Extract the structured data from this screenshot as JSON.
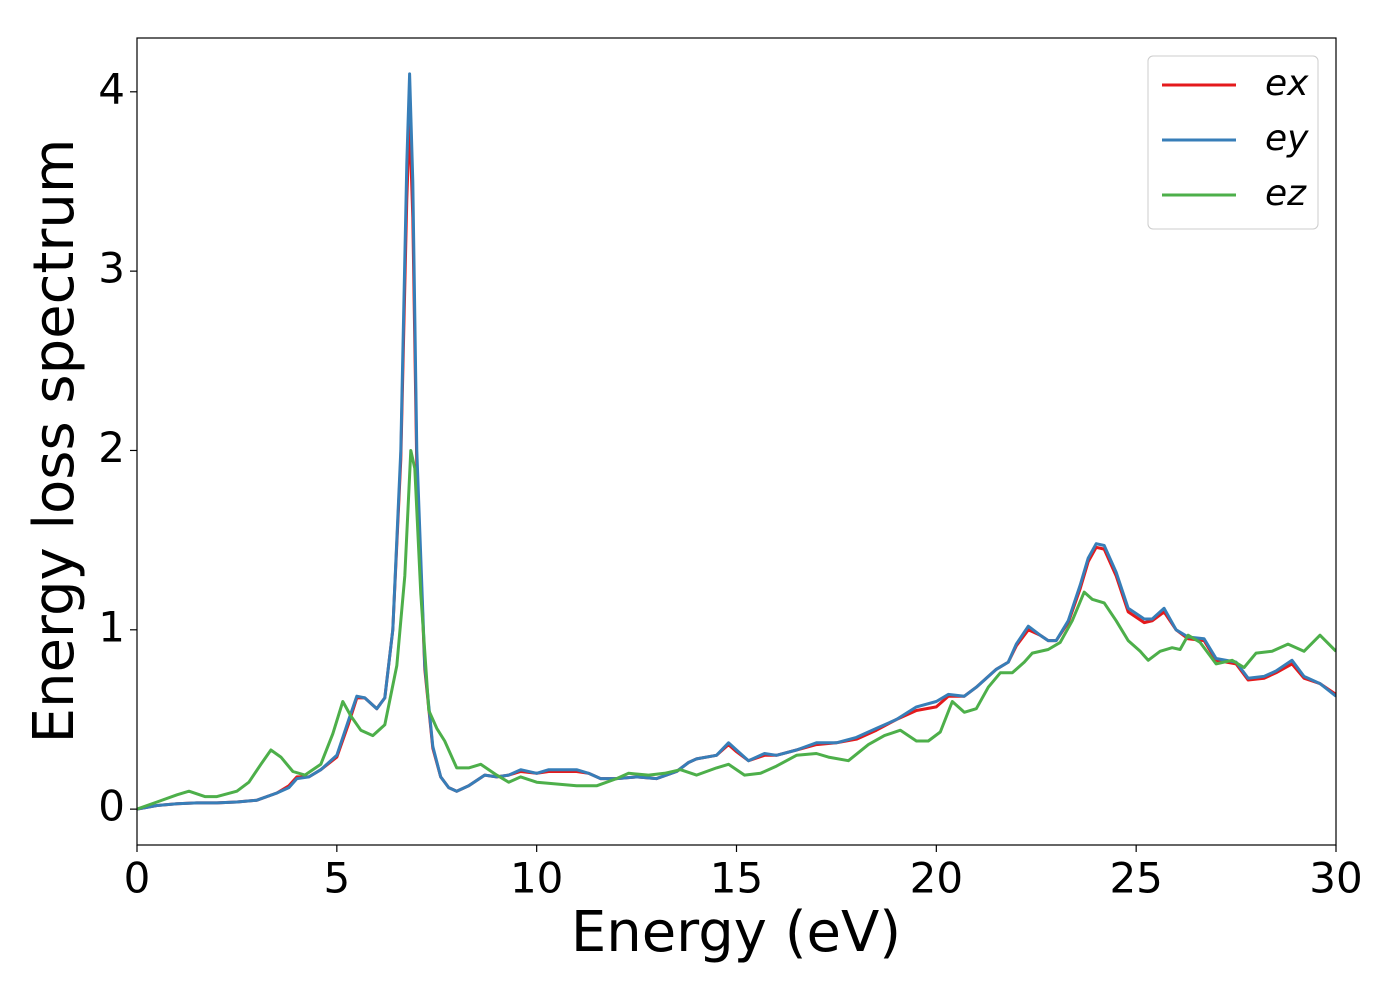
{
  "chart_data": {
    "type": "line",
    "xlabel": "Energy (eV)",
    "ylabel": "Energy loss spectrum",
    "xlim": [
      0,
      30
    ],
    "ylim": [
      -0.2,
      4.3
    ],
    "xticks": [
      0,
      5,
      10,
      15,
      20,
      25,
      30
    ],
    "yticks": [
      0,
      1,
      2,
      3,
      4
    ],
    "grid": false,
    "legend": "upper right",
    "series": [
      {
        "name": "ex",
        "color": "#e41a1c",
        "x": [
          0,
          0.5,
          1,
          1.5,
          2,
          2.5,
          3,
          3.5,
          3.8,
          4,
          4.3,
          4.6,
          5,
          5.3,
          5.5,
          5.7,
          6,
          6.2,
          6.4,
          6.6,
          6.75,
          6.82,
          6.9,
          7.0,
          7.2,
          7.4,
          7.6,
          7.8,
          8.0,
          8.3,
          8.7,
          9,
          9.3,
          9.6,
          10,
          10.3,
          11,
          11.3,
          11.6,
          12,
          12.5,
          13,
          13.5,
          13.8,
          14,
          14.5,
          14.8,
          15,
          15.3,
          15.7,
          16,
          16.5,
          17,
          17.5,
          18,
          18.5,
          19,
          19.5,
          20,
          20.3,
          20.7,
          21,
          21.5,
          21.8,
          22,
          22.3,
          22.6,
          22.8,
          23.0,
          23.3,
          23.6,
          23.8,
          24.0,
          24.2,
          24.5,
          24.8,
          25.2,
          25.4,
          25.7,
          26,
          26.3,
          26.7,
          27,
          27.5,
          27.8,
          28.2,
          28.5,
          28.9,
          29.2,
          29.6,
          30
        ],
        "values": [
          0,
          0.02,
          0.03,
          0.035,
          0.035,
          0.04,
          0.05,
          0.09,
          0.13,
          0.18,
          0.18,
          0.22,
          0.29,
          0.48,
          0.62,
          0.62,
          0.56,
          0.62,
          1.0,
          1.95,
          3.4,
          3.85,
          3.3,
          1.9,
          0.78,
          0.34,
          0.18,
          0.12,
          0.1,
          0.13,
          0.19,
          0.18,
          0.19,
          0.21,
          0.2,
          0.21,
          0.21,
          0.2,
          0.17,
          0.17,
          0.18,
          0.17,
          0.21,
          0.26,
          0.28,
          0.3,
          0.36,
          0.32,
          0.27,
          0.3,
          0.3,
          0.33,
          0.36,
          0.37,
          0.39,
          0.44,
          0.5,
          0.55,
          0.57,
          0.63,
          0.63,
          0.68,
          0.78,
          0.82,
          0.91,
          1.0,
          0.97,
          0.94,
          0.94,
          1.04,
          1.23,
          1.38,
          1.46,
          1.45,
          1.3,
          1.1,
          1.04,
          1.05,
          1.1,
          1.0,
          0.95,
          0.94,
          0.83,
          0.81,
          0.72,
          0.73,
          0.76,
          0.81,
          0.73,
          0.7,
          0.64
        ]
      },
      {
        "name": "ey",
        "color": "#377eb8",
        "x": [
          0,
          0.5,
          1,
          1.5,
          2,
          2.5,
          3,
          3.5,
          3.8,
          4,
          4.3,
          4.6,
          5,
          5.3,
          5.5,
          5.7,
          6,
          6.2,
          6.4,
          6.6,
          6.75,
          6.82,
          6.9,
          7.0,
          7.2,
          7.4,
          7.6,
          7.8,
          8.0,
          8.3,
          8.7,
          9,
          9.3,
          9.6,
          10,
          10.3,
          11,
          11.3,
          11.6,
          12,
          12.5,
          13,
          13.5,
          13.8,
          14,
          14.5,
          14.8,
          15,
          15.3,
          15.7,
          16,
          16.5,
          17,
          17.5,
          18,
          18.5,
          19,
          19.5,
          20,
          20.3,
          20.7,
          21,
          21.5,
          21.8,
          22,
          22.3,
          22.6,
          22.8,
          23.0,
          23.3,
          23.6,
          23.8,
          24.0,
          24.2,
          24.5,
          24.8,
          25.2,
          25.4,
          25.7,
          26,
          26.3,
          26.7,
          27,
          27.5,
          27.8,
          28.2,
          28.5,
          28.9,
          29.2,
          29.6,
          30
        ],
        "values": [
          0,
          0.02,
          0.03,
          0.035,
          0.035,
          0.04,
          0.05,
          0.09,
          0.12,
          0.17,
          0.18,
          0.22,
          0.3,
          0.5,
          0.63,
          0.62,
          0.56,
          0.62,
          1.0,
          2.0,
          3.6,
          4.1,
          3.5,
          2.0,
          0.8,
          0.35,
          0.18,
          0.12,
          0.1,
          0.13,
          0.19,
          0.18,
          0.19,
          0.22,
          0.2,
          0.22,
          0.22,
          0.2,
          0.17,
          0.17,
          0.18,
          0.17,
          0.21,
          0.26,
          0.28,
          0.3,
          0.37,
          0.33,
          0.27,
          0.31,
          0.3,
          0.33,
          0.37,
          0.37,
          0.4,
          0.45,
          0.5,
          0.57,
          0.6,
          0.64,
          0.63,
          0.68,
          0.78,
          0.82,
          0.92,
          1.02,
          0.97,
          0.94,
          0.94,
          1.05,
          1.25,
          1.4,
          1.48,
          1.47,
          1.32,
          1.12,
          1.06,
          1.06,
          1.12,
          1.0,
          0.96,
          0.95,
          0.84,
          0.82,
          0.73,
          0.74,
          0.77,
          0.83,
          0.74,
          0.7,
          0.63
        ]
      },
      {
        "name": "ez",
        "color": "#4daf4a",
        "x": [
          0,
          0.5,
          1,
          1.3,
          1.7,
          2,
          2.5,
          2.8,
          3.1,
          3.35,
          3.6,
          3.9,
          4.2,
          4.6,
          4.9,
          5.15,
          5.35,
          5.6,
          5.9,
          6.2,
          6.5,
          6.7,
          6.85,
          6.95,
          7.1,
          7.3,
          7.5,
          7.7,
          8,
          8.3,
          8.6,
          9,
          9.3,
          9.6,
          10,
          10.5,
          11,
          11.5,
          12,
          12.3,
          12.8,
          13.2,
          13.6,
          14,
          14.5,
          14.8,
          15.2,
          15.6,
          16,
          16.5,
          17,
          17.3,
          17.8,
          18.3,
          18.7,
          19.1,
          19.5,
          19.8,
          20.1,
          20.4,
          20.7,
          21,
          21.3,
          21.6,
          21.9,
          22.2,
          22.4,
          22.8,
          23.1,
          23.4,
          23.7,
          23.9,
          24.2,
          24.5,
          24.8,
          25.1,
          25.3,
          25.6,
          25.9,
          26.1,
          26.3,
          26.6,
          27,
          27.4,
          27.7,
          28,
          28.4,
          28.8,
          29.2,
          29.6,
          30
        ],
        "values": [
          0,
          0.04,
          0.08,
          0.1,
          0.07,
          0.07,
          0.1,
          0.15,
          0.25,
          0.33,
          0.29,
          0.21,
          0.19,
          0.25,
          0.42,
          0.6,
          0.52,
          0.44,
          0.41,
          0.47,
          0.8,
          1.3,
          2.0,
          1.9,
          1.2,
          0.55,
          0.45,
          0.38,
          0.23,
          0.23,
          0.25,
          0.19,
          0.15,
          0.18,
          0.15,
          0.14,
          0.13,
          0.13,
          0.17,
          0.2,
          0.19,
          0.2,
          0.22,
          0.19,
          0.23,
          0.25,
          0.19,
          0.2,
          0.24,
          0.3,
          0.31,
          0.29,
          0.27,
          0.36,
          0.41,
          0.44,
          0.38,
          0.38,
          0.43,
          0.6,
          0.54,
          0.56,
          0.68,
          0.76,
          0.76,
          0.82,
          0.87,
          0.89,
          0.93,
          1.05,
          1.21,
          1.17,
          1.15,
          1.05,
          0.94,
          0.88,
          0.83,
          0.88,
          0.9,
          0.89,
          0.97,
          0.93,
          0.81,
          0.83,
          0.79,
          0.87,
          0.88,
          0.92,
          0.88,
          0.97,
          0.88
        ]
      }
    ]
  }
}
